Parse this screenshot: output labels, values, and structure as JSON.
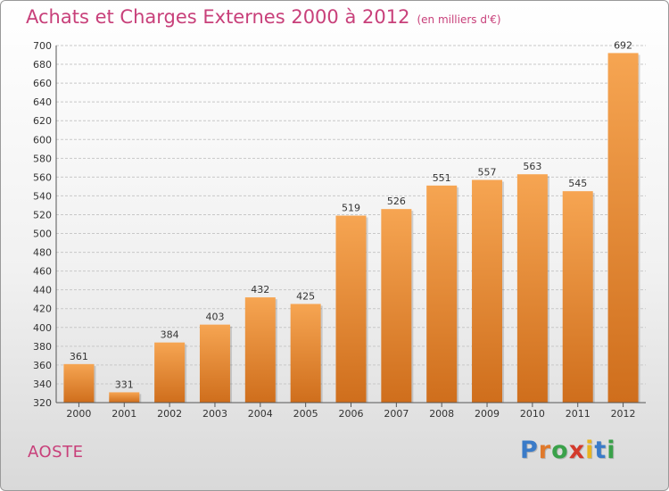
{
  "title": "Achats et Charges Externes 2000 à 2012",
  "unit_label": "(en milliers d'€)",
  "city": "AOSTE",
  "logo": {
    "letters": [
      "P",
      "r",
      "o",
      "x",
      "i",
      "t",
      "i"
    ],
    "colors": [
      "#3a7bc8",
      "#e0792b",
      "#3aa14a",
      "#d33a2c",
      "#e8b420",
      "#3a7bc8",
      "#3aa14a"
    ]
  },
  "colors": {
    "bar_light": "#f6a552",
    "bar_dark": "#cf6e1c",
    "title": "#c8407a",
    "grid": "#c8c8c8"
  },
  "chart_data": {
    "type": "bar",
    "categories": [
      "2000",
      "2001",
      "2002",
      "2003",
      "2004",
      "2005",
      "2006",
      "2007",
      "2008",
      "2009",
      "2010",
      "2011",
      "2012"
    ],
    "values": [
      361,
      331,
      384,
      403,
      432,
      425,
      519,
      526,
      551,
      557,
      563,
      545,
      692
    ],
    "title": "Achats et Charges Externes 2000 à 2012",
    "ylim": [
      320,
      700
    ],
    "ytick_step": 20,
    "grid": true
  }
}
